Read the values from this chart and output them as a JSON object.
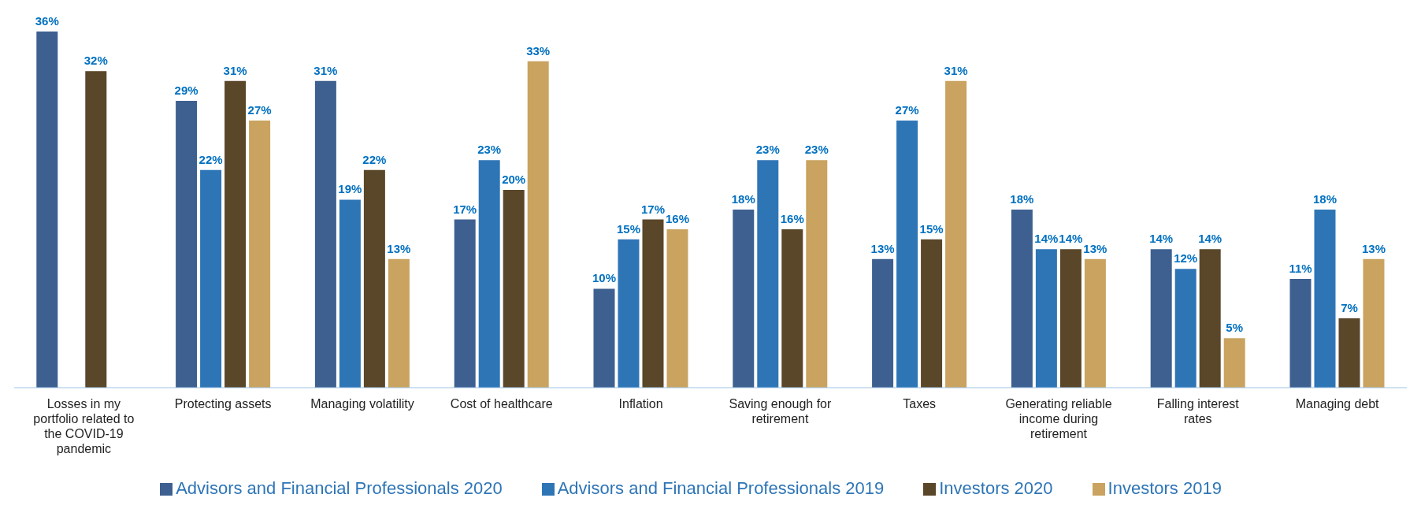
{
  "chart_data": {
    "type": "bar",
    "categories": [
      "Losses in my portfolio related to the COVID-19 pandemic",
      "Protecting assets",
      "Managing volatility",
      "Cost of healthcare",
      "Inflation",
      "Saving enough for retirement",
      "Taxes",
      "Generating reliable income during retirement",
      "Falling interest rates",
      "Managing debt"
    ],
    "series": [
      {
        "name": "Advisors and Financial Professionals 2020",
        "color": "#3e6090",
        "values": [
          36,
          29,
          31,
          17,
          10,
          18,
          13,
          18,
          14,
          11
        ],
        "value_labels": [
          "36%",
          "29%",
          "31%",
          "17%",
          "10%",
          "18%",
          "13%",
          "18%",
          "14%",
          "11%"
        ]
      },
      {
        "name": "Advisors and Financial Professionals 2019",
        "color": "#2e75b6",
        "values": [
          null,
          22,
          19,
          23,
          15,
          23,
          27,
          14,
          12,
          18
        ],
        "value_labels": [
          null,
          "22%",
          "19%",
          "23%",
          "15%",
          "23%",
          "27%",
          "14%",
          "12%",
          "18%"
        ]
      },
      {
        "name": "Investors 2020",
        "color": "#5a4629",
        "values": [
          32,
          31,
          22,
          20,
          17,
          16,
          15,
          14,
          14,
          7
        ],
        "value_labels": [
          "32%",
          "31%",
          "22%",
          "20%",
          "17%",
          "16%",
          "15%",
          "14%",
          "14%",
          "7%"
        ]
      },
      {
        "name": "Investors 2019",
        "color": "#c9a35f",
        "values": [
          null,
          27,
          13,
          33,
          16,
          23,
          31,
          13,
          5,
          13
        ],
        "value_labels": [
          null,
          "27%",
          "13%",
          "33%",
          "16%",
          "23%",
          "31%",
          "13%",
          "5%",
          "13%"
        ]
      }
    ],
    "legend": "bottom",
    "grid": false
  }
}
